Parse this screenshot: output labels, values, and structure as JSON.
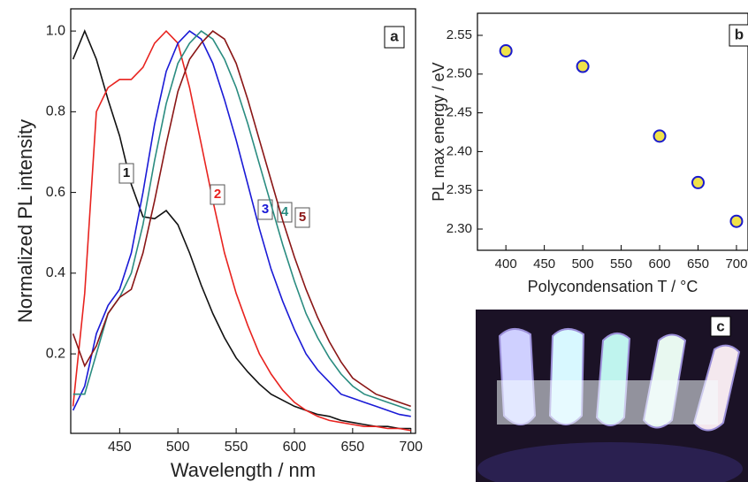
{
  "chart_data": [
    {
      "type": "line",
      "panel_label": "a",
      "xlabel": "Wavelength / nm",
      "ylabel": "Normalized PL intensity",
      "x": [
        410,
        420,
        430,
        440,
        450,
        460,
        470,
        480,
        490,
        500,
        510,
        520,
        530,
        540,
        550,
        560,
        570,
        580,
        590,
        600,
        610,
        620,
        630,
        640,
        650,
        660,
        670,
        680,
        690,
        700
      ],
      "series": [
        {
          "name": "1",
          "color": "#111111",
          "values": [
            0.93,
            1.0,
            0.93,
            0.83,
            0.74,
            0.62,
            0.54,
            0.535,
            0.555,
            0.52,
            0.45,
            0.37,
            0.3,
            0.24,
            0.19,
            0.155,
            0.125,
            0.1,
            0.085,
            0.07,
            0.06,
            0.05,
            0.045,
            0.035,
            0.03,
            0.025,
            0.02,
            0.02,
            0.015,
            0.015
          ]
        },
        {
          "name": "2",
          "color": "#e8231f",
          "values": [
            0.07,
            0.35,
            0.8,
            0.86,
            0.88,
            0.88,
            0.91,
            0.97,
            1.0,
            0.97,
            0.86,
            0.72,
            0.58,
            0.45,
            0.35,
            0.27,
            0.2,
            0.15,
            0.11,
            0.08,
            0.06,
            0.045,
            0.035,
            0.03,
            0.025,
            0.02,
            0.02,
            0.015,
            0.015,
            0.01
          ]
        },
        {
          "name": "3",
          "color": "#1a1ad6",
          "values": [
            0.06,
            0.12,
            0.25,
            0.32,
            0.36,
            0.45,
            0.6,
            0.77,
            0.9,
            0.97,
            1.0,
            0.98,
            0.92,
            0.83,
            0.73,
            0.62,
            0.51,
            0.41,
            0.33,
            0.26,
            0.2,
            0.16,
            0.13,
            0.1,
            0.09,
            0.08,
            0.07,
            0.06,
            0.05,
            0.045
          ]
        },
        {
          "name": "4",
          "color": "#2a8c80",
          "values": [
            0.1,
            0.1,
            0.2,
            0.3,
            0.34,
            0.4,
            0.52,
            0.68,
            0.82,
            0.92,
            0.97,
            1.0,
            0.98,
            0.93,
            0.86,
            0.77,
            0.67,
            0.57,
            0.47,
            0.38,
            0.3,
            0.24,
            0.19,
            0.15,
            0.12,
            0.1,
            0.09,
            0.08,
            0.07,
            0.06
          ]
        },
        {
          "name": "5",
          "color": "#8a1616",
          "values": [
            0.25,
            0.17,
            0.22,
            0.3,
            0.34,
            0.36,
            0.45,
            0.58,
            0.72,
            0.85,
            0.93,
            0.97,
            1.0,
            0.98,
            0.92,
            0.83,
            0.73,
            0.63,
            0.53,
            0.44,
            0.36,
            0.29,
            0.23,
            0.18,
            0.14,
            0.12,
            0.1,
            0.09,
            0.08,
            0.07
          ]
        }
      ],
      "xlim": [
        408,
        704
      ],
      "ylim": [
        0.003,
        1.055
      ],
      "xticks": [
        450,
        500,
        550,
        600,
        650,
        700
      ],
      "yticks": [
        0.2,
        0.4,
        0.6,
        0.8,
        {
          "value": 1.0,
          "label": "1.0"
        }
      ]
    },
    {
      "type": "scatter",
      "panel_label": "b",
      "xlabel": "Polycondensation T / °C",
      "ylabel": "PL max energy / eV",
      "x": [
        400,
        500,
        600,
        650,
        700
      ],
      "values": [
        2.53,
        2.51,
        2.42,
        2.36,
        2.31
      ],
      "color": "#1a1acc",
      "xlim": [
        363,
        715
      ],
      "ylim": [
        2.2726,
        2.5785
      ],
      "xticks": [
        400,
        450,
        500,
        550,
        600,
        650,
        700
      ],
      "yticks": [
        {
          "value": 2.3,
          "label": "2.30"
        },
        2.35,
        {
          "value": 2.4,
          "label": "2.40"
        },
        2.45,
        {
          "value": 2.5,
          "label": "2.50"
        },
        2.55
      ]
    }
  ],
  "photo": {
    "label": "c"
  }
}
